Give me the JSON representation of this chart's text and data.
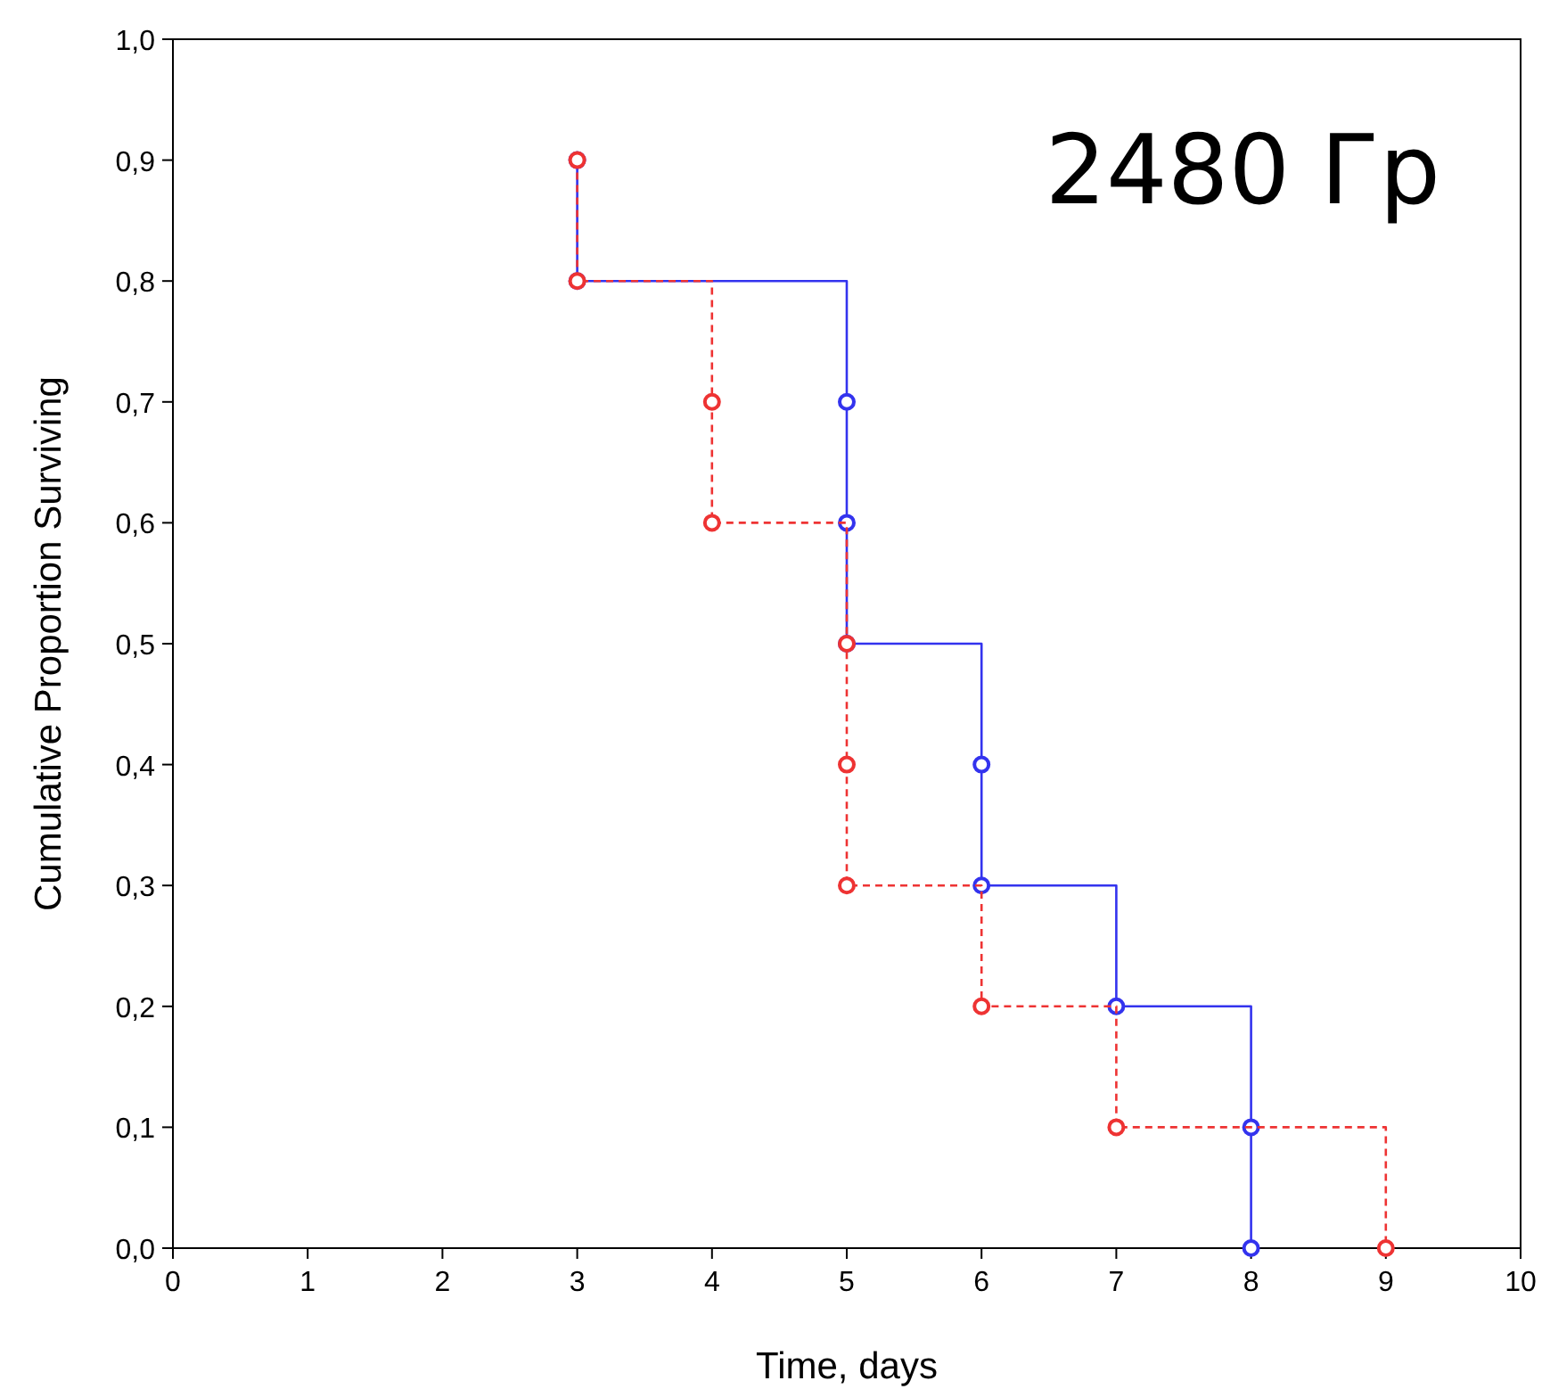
{
  "chart_data": {
    "type": "step",
    "xlabel": "Time, days",
    "ylabel": "Cumulative Proportion Surviving",
    "annotations": [
      "2480 Гр"
    ],
    "xlim": [
      0,
      10
    ],
    "xticks": [
      0,
      1,
      2,
      3,
      4,
      5,
      6,
      7,
      8,
      9,
      10
    ],
    "ylim": [
      0,
      1
    ],
    "yticks": [
      {
        "value": 0,
        "label": "0,0"
      },
      {
        "value": 0.1,
        "label": "0,1"
      },
      {
        "value": 0.2,
        "label": "0,2"
      },
      {
        "value": 0.3,
        "label": "0,3"
      },
      {
        "value": 0.4,
        "label": "0,4"
      },
      {
        "value": 0.5,
        "label": "0,5"
      },
      {
        "value": 0.6,
        "label": "0,6"
      },
      {
        "value": 0.7,
        "label": "0,7"
      },
      {
        "value": 0.8,
        "label": "0,8"
      },
      {
        "value": 0.9,
        "label": "0,9"
      },
      {
        "value": 1,
        "label": "1,0"
      }
    ],
    "grid": false,
    "marker": "circle",
    "series": [
      {
        "color": "#3333ee",
        "line_style": "solid",
        "x": [
          3,
          3,
          5,
          5,
          5,
          6,
          6,
          7,
          8,
          8
        ],
        "values": [
          0.9,
          0.8,
          0.7,
          0.6,
          0.5,
          0.4,
          0.3,
          0.2,
          0.1,
          0
        ]
      },
      {
        "color": "#ee3333",
        "line_style": "dashed",
        "x": [
          3,
          3,
          4,
          4,
          5,
          5,
          5,
          6,
          7,
          9
        ],
        "values": [
          0.9,
          0.8,
          0.7,
          0.6,
          0.5,
          0.4,
          0.3,
          0.2,
          0.1,
          0
        ]
      }
    ]
  }
}
